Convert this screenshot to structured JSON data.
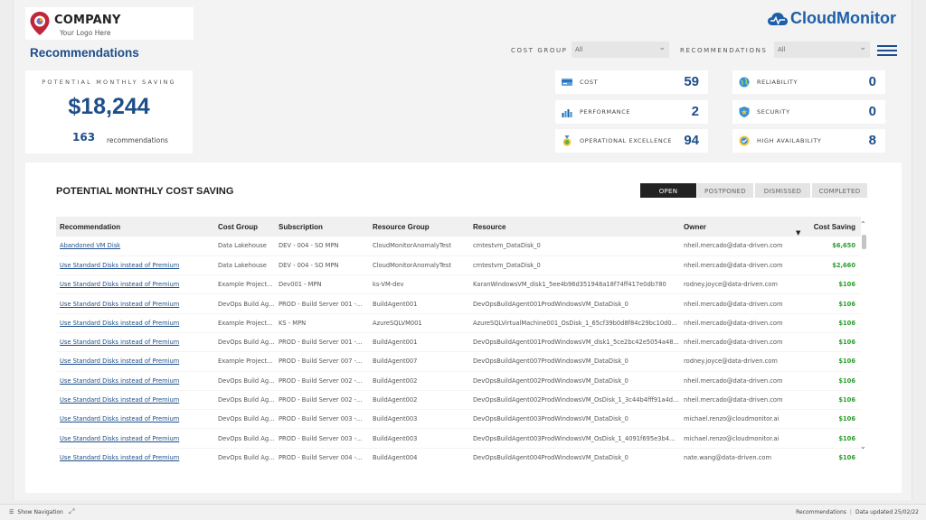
{
  "logo": {
    "company": "COMPANY",
    "tagline": "Your Logo Here"
  },
  "brand": {
    "name": "CloudMonitor",
    "icon": "cloud-pulse-icon",
    "color": "#1d5fa8"
  },
  "page": {
    "title": "Recommendations"
  },
  "filters": {
    "cost_group": {
      "label": "COST GROUP",
      "value": "All"
    },
    "recommendations": {
      "label": "RECOMMENDATIONS",
      "value": "All"
    }
  },
  "summary": {
    "label": "POTENTIAL MONTHLY SAVING",
    "value": "$18,244",
    "count": "163",
    "count_label": "recommendations"
  },
  "metrics": [
    {
      "label": "COST",
      "value": "59",
      "icon": "cost-card-icon"
    },
    {
      "label": "RELIABILITY",
      "value": "0",
      "icon": "globe-icon"
    },
    {
      "label": "PERFORMANCE",
      "value": "2",
      "icon": "bar-chart-icon"
    },
    {
      "label": "SECURITY",
      "value": "0",
      "icon": "shield-icon"
    },
    {
      "label": "OPERATIONAL EXCELLENCE",
      "value": "94",
      "icon": "medal-icon"
    },
    {
      "label": "HIGH AVAILABILITY",
      "value": "8",
      "icon": "availability-icon"
    }
  ],
  "section": {
    "title": "POTENTIAL MONTHLY COST SAVING",
    "tabs": [
      "OPEN",
      "POSTPONED",
      "DISMISSED",
      "COMPLETED"
    ],
    "active_tab": "OPEN"
  },
  "table": {
    "columns": [
      "Recommendation",
      "Cost Group",
      "Subscription",
      "Resource Group",
      "Resource",
      "Owner",
      "Cost Saving"
    ],
    "rows": [
      [
        "Abandoned VM Disk",
        "Data Lakehouse",
        "DEV - 004 - SO MPN",
        "CloudMonitorAnomalyTest",
        "cmtestvm_DataDisk_0",
        "nheil.mercado@data-driven.com",
        "$6,650"
      ],
      [
        "Use Standard Disks instead of Premium",
        "Data Lakehouse",
        "DEV - 004 - SO MPN",
        "CloudMonitorAnomalyTest",
        "cmtestvm_DataDisk_0",
        "nheil.mercado@data-driven.com",
        "$2,660"
      ],
      [
        "Use Standard Disks instead of Premium",
        "Example Project...",
        "Dev001 - MPN",
        "ks-VM-dev",
        "KaranWindowsVM_disk1_5ee4b96d351948a18f74ff417e0db780",
        "rodney.joyce@data-driven.com",
        "$106"
      ],
      [
        "Use Standard Disks instead of Premium",
        "DevOps Build Ag...",
        "PROD - Build Server 001 -...",
        "BuildAgent001",
        "DevOpsBuildAgent001ProdWindowsVM_DataDisk_0",
        "nheil.mercado@data-driven.com",
        "$106"
      ],
      [
        "Use Standard Disks instead of Premium",
        "Example Project...",
        "KS - MPN",
        "AzureSQLVM001",
        "AzureSQLVirtualMachine001_OsDisk_1_65cf39b0d8f84c29bc10d0...",
        "nheil.mercado@data-driven.com",
        "$106"
      ],
      [
        "Use Standard Disks instead of Premium",
        "DevOps Build Ag...",
        "PROD - Build Server 001 -...",
        "BuildAgent001",
        "DevOpsBuildAgent001ProdWindowsVM_disk1_5ce2bc42e5054a48...",
        "nheil.mercado@data-driven.com",
        "$106"
      ],
      [
        "Use Standard Disks instead of Premium",
        "Example Project...",
        "PROD - Build Server 007 -...",
        "BuildAgent007",
        "DevOpsBuildAgent007ProdWindowsVM_DataDisk_0",
        "rodney.joyce@data-driven.com",
        "$106"
      ],
      [
        "Use Standard Disks instead of Premium",
        "DevOps Build Ag...",
        "PROD - Build Server 002 -...",
        "BuildAgent002",
        "DevOpsBuildAgent002ProdWindowsVM_DataDisk_0",
        "nheil.mercado@data-driven.com",
        "$106"
      ],
      [
        "Use Standard Disks instead of Premium",
        "DevOps Build Ag...",
        "PROD - Build Server 002 -...",
        "BuildAgent002",
        "DevOpsBuildAgent002ProdWindowsVM_OsDisk_1_3c44b4fff91a4d...",
        "nheil.mercado@data-driven.com",
        "$106"
      ],
      [
        "Use Standard Disks instead of Premium",
        "DevOps Build Ag...",
        "PROD - Build Server 003 -...",
        "BuildAgent003",
        "DevOpsBuildAgent003ProdWindowsVM_DataDisk_0",
        "michael.renzo@cloudmonitor.ai",
        "$106"
      ],
      [
        "Use Standard Disks instead of Premium",
        "DevOps Build Ag...",
        "PROD - Build Server 003 -...",
        "BuildAgent003",
        "DevOpsBuildAgent003ProdWindowsVM_OsDisk_1_4091f695e3b4...",
        "michael.renzo@cloudmonitor.ai",
        "$106"
      ],
      [
        "Use Standard Disks instead of Premium",
        "DevOps Build Ag...",
        "PROD - Build Server 004 -...",
        "BuildAgent004",
        "DevOpsBuildAgent004ProdWindowsVM_DataDisk_0",
        "nate.wang@data-driven.com",
        "$106"
      ]
    ]
  },
  "statusbar": {
    "nav_label": "Show Navigation",
    "page_name": "Recommendations",
    "updated": "Data updated 25/02/22"
  }
}
